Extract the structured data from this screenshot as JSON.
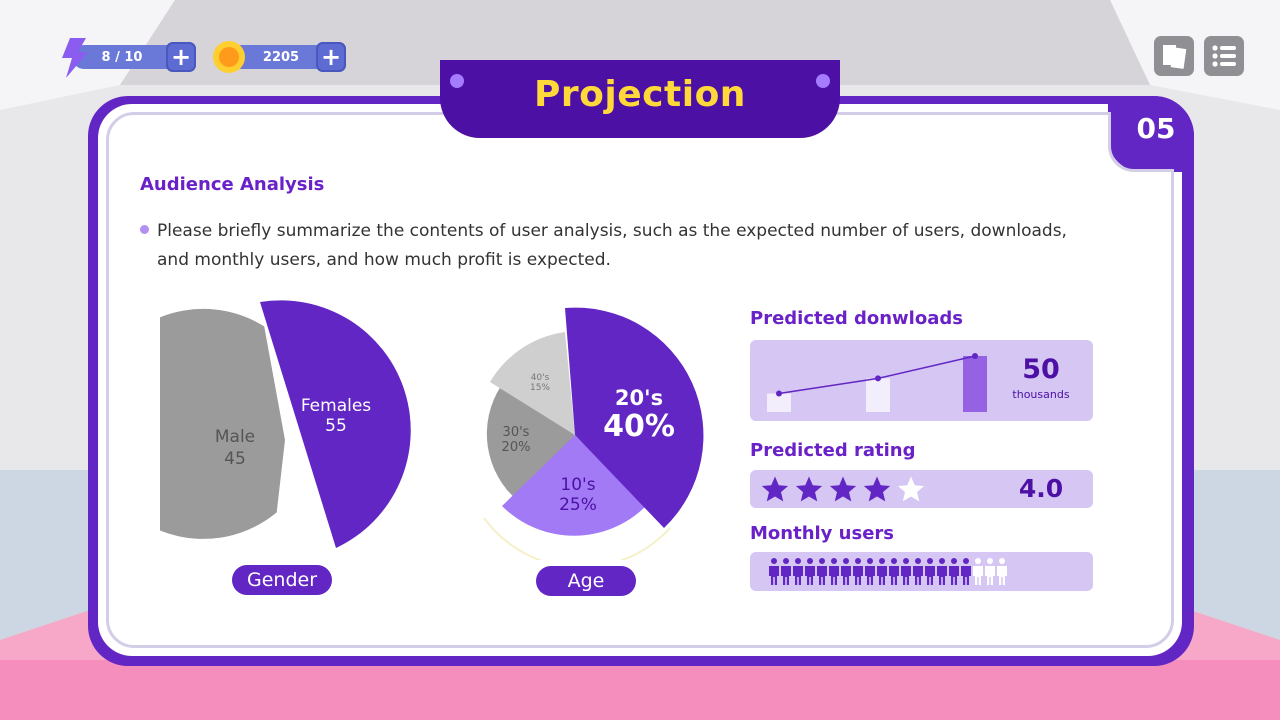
{
  "hud": {
    "energy": "8 / 10",
    "coins": "2205",
    "plus": "+"
  },
  "title": "Projection",
  "page_number": "05",
  "section_title": "Audience Analysis",
  "description": "Please briefly summarize the contents of user analysis, such as the expected number of users, downloads, and monthly users, and how much profit is expected.",
  "gender_chart": {
    "label": "Gender",
    "slices": [
      {
        "name": "Females",
        "value": 55,
        "color": "#6226c4"
      },
      {
        "name": "Male",
        "value": 45,
        "color": "#9b9b9b"
      }
    ]
  },
  "age_chart": {
    "label": "Age",
    "slices": [
      {
        "name": "20's",
        "value_label": "40%",
        "value": 40,
        "color": "#6226c4"
      },
      {
        "name": "10's",
        "value_label": "25%",
        "value": 25,
        "color": "#a27af5"
      },
      {
        "name": "30's",
        "value_label": "20%",
        "value": 20,
        "color": "#9b9b9b"
      },
      {
        "name": "40's",
        "value_label": "15%",
        "value": 15,
        "color": "#cfcfcf"
      }
    ]
  },
  "downloads": {
    "title": "Predicted donwloads",
    "value": "50",
    "unit": "thousands",
    "bar_levels": [
      0.33,
      0.6,
      1.0
    ]
  },
  "rating": {
    "title": "Predicted rating",
    "value": "4.0",
    "stars_filled": 4,
    "stars_total": 5
  },
  "monthly": {
    "title": "Monthly users",
    "filled": 17,
    "total": 20
  },
  "colors": {
    "primary": "#6226c4",
    "dark": "#4c10a4",
    "title_yellow": "#ffd83a",
    "panel": "#d5c6f3",
    "grey": "#9b9b9b"
  }
}
